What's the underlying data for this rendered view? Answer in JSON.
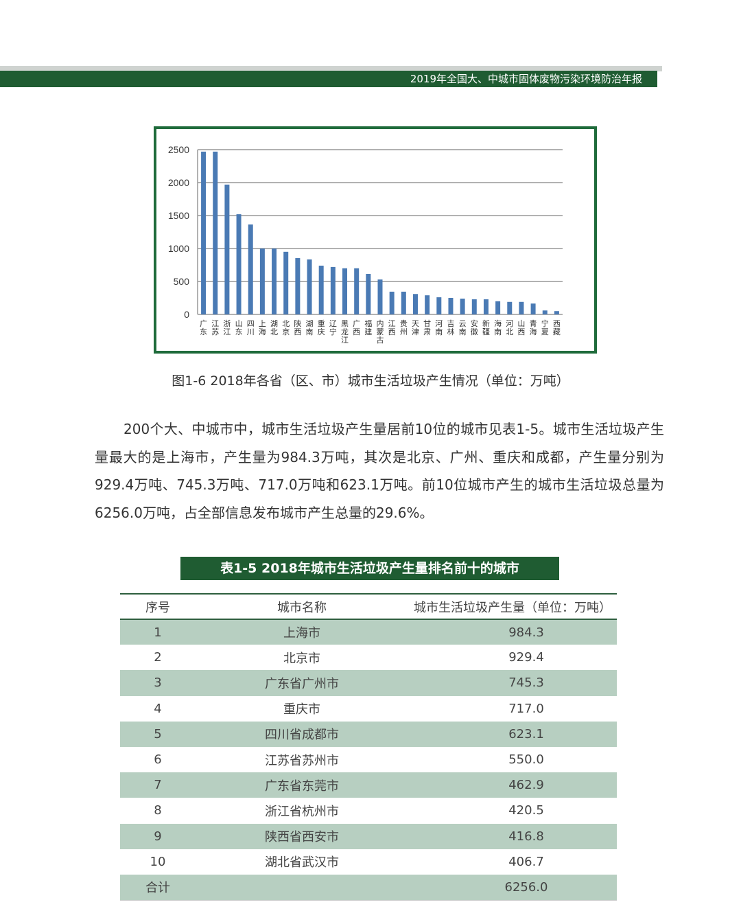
{
  "header": {
    "title": "2019年全国大、中城市固体废物污染环境防治年报"
  },
  "figure": {
    "caption": "图1-6  2018年各省（区、市）城市生活垃圾产生情况（单位：万吨）"
  },
  "chart_data": {
    "type": "bar",
    "categories": [
      "广东",
      "江苏",
      "浙江",
      "山东",
      "四川",
      "上海",
      "湖北",
      "北京",
      "陕西",
      "湖南",
      "重庆",
      "辽宁",
      "黑龙江",
      "广西",
      "福建",
      "内蒙古",
      "江西",
      "贵州",
      "天津",
      "甘肃",
      "河南",
      "吉林",
      "云南",
      "安徽",
      "新疆",
      "海南",
      "河北",
      "山西",
      "青海",
      "宁夏",
      "西藏"
    ],
    "values": [
      2470,
      2470,
      1970,
      1520,
      1365,
      1000,
      1000,
      950,
      855,
      835,
      740,
      720,
      700,
      700,
      615,
      530,
      345,
      345,
      310,
      290,
      260,
      250,
      240,
      230,
      230,
      200,
      190,
      190,
      165,
      60,
      50
    ],
    "ylim": [
      0,
      2500
    ],
    "yticks": [
      0,
      500,
      1000,
      1500,
      2000,
      2500
    ],
    "grid": true,
    "color": "#4a7ab4"
  },
  "paragraph": "200个大、中城市中，城市生活垃圾产生量居前10位的城市见表1-5。城市生活垃圾产生量最大的是上海市，产生量为984.3万吨，其次是北京、广州、重庆和成都，产生量分别为929.4万吨、745.3万吨、717.0万吨和623.1万吨。前10位城市产生的城市生活垃圾总量为6256.0万吨，占全部信息发布城市产生总量的29.6%。",
  "table": {
    "title": "表1-5  2018年城市生活垃圾产生量排名前十的城市",
    "headers": [
      "序号",
      "城市名称",
      "城市生活垃圾产生量（单位：万吨）"
    ],
    "rows": [
      [
        "1",
        "上海市",
        "984.3"
      ],
      [
        "2",
        "北京市",
        "929.4"
      ],
      [
        "3",
        "广东省广州市",
        "745.3"
      ],
      [
        "4",
        "重庆市",
        "717.0"
      ],
      [
        "5",
        "四川省成都市",
        "623.1"
      ],
      [
        "6",
        "江苏省苏州市",
        "550.0"
      ],
      [
        "7",
        "广东省东莞市",
        "462.9"
      ],
      [
        "8",
        "浙江省杭州市",
        "420.5"
      ],
      [
        "9",
        "陕西省西安市",
        "416.8"
      ],
      [
        "10",
        "湖北省武汉市",
        "406.7"
      ]
    ],
    "total": {
      "label": "合计",
      "value": "6256.0"
    }
  }
}
